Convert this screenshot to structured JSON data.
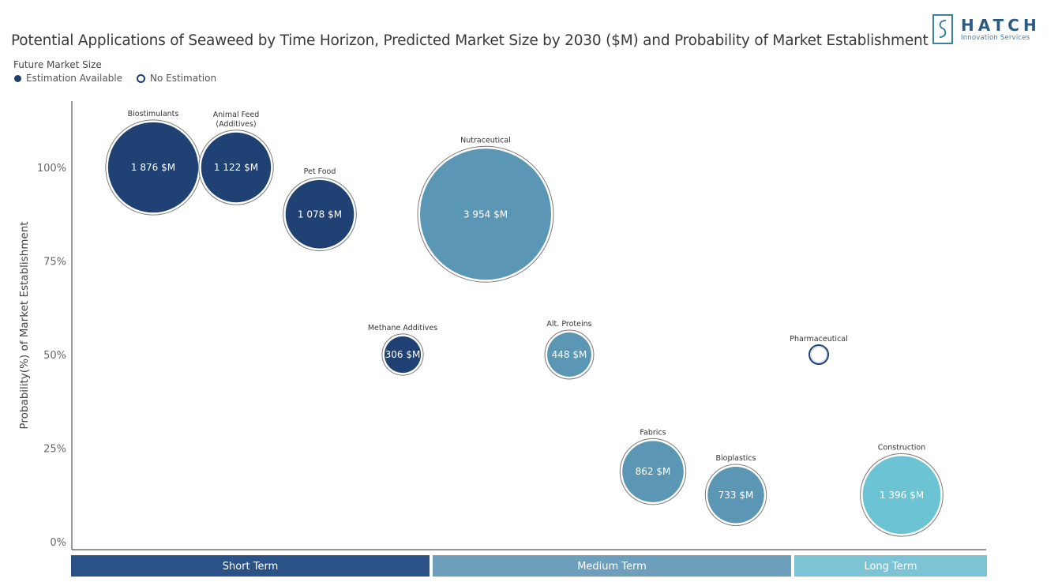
{
  "title": "Potential Applications of Seaweed by Time Horizon, Predicted Market Size by 2030 ($M) and Probability of Market Establishment",
  "legend": {
    "title": "Future Market Size",
    "items": [
      {
        "label": "Estimation Available",
        "marker": "filled"
      },
      {
        "label": "No Estimation",
        "marker": "empty"
      }
    ]
  },
  "logo": {
    "name": "HATCH",
    "tagline": "Innovation Services"
  },
  "colors": {
    "short_term": "#1f4173",
    "medium_term": "#5b97b4",
    "long_term": "#6bc3d3",
    "short_band": "#2a5286",
    "medium_band": "#6d9ebb",
    "long_band": "#7cc4d5",
    "axis": "#555555"
  },
  "chart_data": {
    "type": "bubble",
    "ylabel": "Probability(%) of Market Establishment",
    "xlabel": "",
    "ylim": [
      0,
      1.05
    ],
    "yticks": [
      {
        "value": 0,
        "label": "0%"
      },
      {
        "value": 0.25,
        "label": "25%"
      },
      {
        "value": 0.5,
        "label": "50%"
      },
      {
        "value": 0.75,
        "label": "75%"
      },
      {
        "value": 1.0,
        "label": "100%"
      }
    ],
    "horizons": [
      {
        "key": "short",
        "label": "Short Term"
      },
      {
        "key": "medium",
        "label": "Medium Term"
      },
      {
        "key": "long",
        "label": "Long Term"
      }
    ],
    "points": [
      {
        "name": "Biostimulants",
        "horizon": "short",
        "probability": 1.0,
        "market_size": 1876,
        "value_label": "1 876 $M"
      },
      {
        "name": "Animal Feed (Additives)",
        "name_lines": [
          "Animal Feed",
          "(Additives)"
        ],
        "horizon": "short",
        "probability": 1.0,
        "market_size": 1122,
        "value_label": "1 122 $M"
      },
      {
        "name": "Pet Food",
        "horizon": "short",
        "probability": 0.875,
        "market_size": 1078,
        "value_label": "1 078 $M"
      },
      {
        "name": "Methane Additives",
        "horizon": "short",
        "probability": 0.5,
        "market_size": 306,
        "value_label": "306 $M"
      },
      {
        "name": "Nutraceutical",
        "horizon": "medium",
        "probability": 0.875,
        "market_size": 3954,
        "value_label": "3 954 $M"
      },
      {
        "name": "Alt. Proteins",
        "horizon": "medium",
        "probability": 0.5,
        "market_size": 448,
        "value_label": "448 $M"
      },
      {
        "name": "Fabrics",
        "horizon": "medium",
        "probability": 0.1875,
        "market_size": 862,
        "value_label": "862 $M"
      },
      {
        "name": "Bioplastics",
        "horizon": "medium",
        "probability": 0.125,
        "market_size": 733,
        "value_label": "733 $M"
      },
      {
        "name": "Pharmaceutical",
        "horizon": "long",
        "probability": 0.5,
        "market_size": null,
        "value_label": ""
      },
      {
        "name": "Construction",
        "horizon": "long",
        "probability": 0.125,
        "market_size": 1396,
        "value_label": "1 396 $M"
      }
    ]
  }
}
